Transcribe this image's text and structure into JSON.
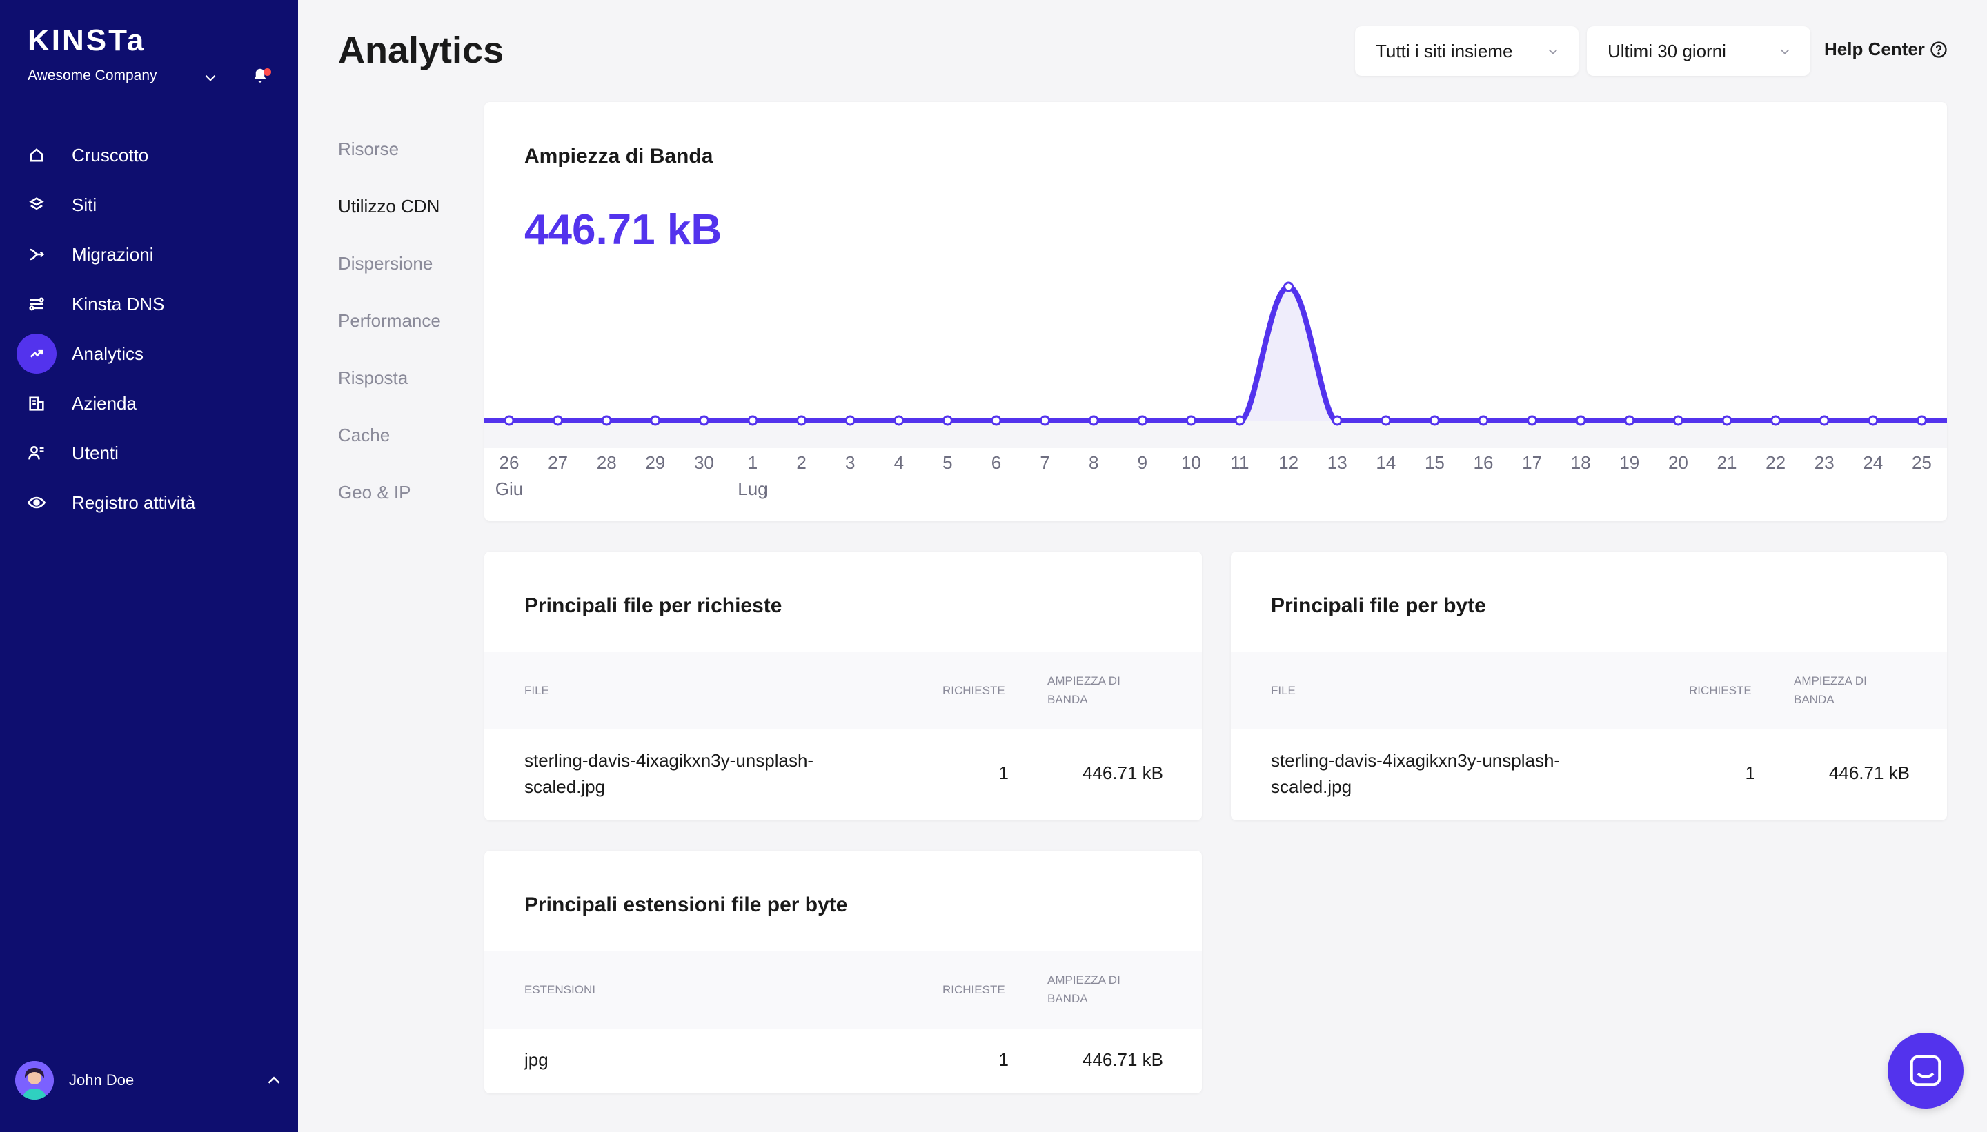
{
  "app": {
    "logo": "KINSTa",
    "company": "Awesome Company"
  },
  "sidebar": {
    "items": [
      {
        "label": "Cruscotto",
        "icon": "home-icon"
      },
      {
        "label": "Siti",
        "icon": "layers-icon"
      },
      {
        "label": "Migrazioni",
        "icon": "migration-icon"
      },
      {
        "label": "Kinsta DNS",
        "icon": "dns-icon"
      },
      {
        "label": "Analytics",
        "icon": "analytics-icon"
      },
      {
        "label": "Azienda",
        "icon": "building-icon"
      },
      {
        "label": "Utenti",
        "icon": "users-icon"
      },
      {
        "label": "Registro attività",
        "icon": "eye-icon"
      }
    ],
    "active_index": 4,
    "user": {
      "name": "John Doe"
    }
  },
  "header": {
    "title": "Analytics",
    "site_select": "Tutti i siti insieme",
    "range_select": "Ultimi 30 giorni",
    "help_center": "Help Center"
  },
  "subnav": {
    "items": [
      "Risorse",
      "Utilizzo CDN",
      "Dispersione",
      "Performance",
      "Risposta",
      "Cache",
      "Geo & IP"
    ],
    "active_index": 1
  },
  "bandwidth_card": {
    "title": "Ampiezza di Banda",
    "total": "446.71 kB"
  },
  "chart_data": {
    "type": "line",
    "title": "Ampiezza di Banda",
    "categories": [
      "26",
      "27",
      "28",
      "29",
      "30",
      "1",
      "2",
      "3",
      "4",
      "5",
      "6",
      "7",
      "8",
      "9",
      "10",
      "11",
      "12",
      "13",
      "14",
      "15",
      "16",
      "17",
      "18",
      "19",
      "20",
      "21",
      "22",
      "23",
      "24",
      "25"
    ],
    "month_labels": [
      {
        "index": 0,
        "label": "Giu"
      },
      {
        "index": 5,
        "label": "Lug"
      }
    ],
    "series": [
      {
        "name": "Ampiezza di Banda (kB)",
        "values": [
          0,
          0,
          0,
          0,
          0,
          0,
          0,
          0,
          0,
          0,
          0,
          0,
          0,
          0,
          0,
          0,
          446.71,
          0,
          0,
          0,
          0,
          0,
          0,
          0,
          0,
          0,
          0,
          0,
          0,
          0
        ]
      }
    ],
    "ylim": [
      0,
      446.71
    ],
    "grid": false,
    "color": "#5333ed"
  },
  "top_files_requests": {
    "title": "Principali file per richieste",
    "columns": [
      "File",
      "Richieste",
      "Ampiezza di banda"
    ],
    "rows": [
      {
        "file_line1": "sterling-davis-4ixagikxn3y-unsplash-",
        "file_line2": "scaled.jpg",
        "requests": "1",
        "bandwidth": "446.71 kB"
      }
    ]
  },
  "top_files_bytes": {
    "title": "Principali file per byte",
    "columns": [
      "File",
      "Richieste",
      "Ampiezza di banda"
    ],
    "rows": [
      {
        "file_line1": "sterling-davis-4ixagikxn3y-unsplash-",
        "file_line2": "scaled.jpg",
        "requests": "1",
        "bandwidth": "446.71 kB"
      }
    ]
  },
  "top_extensions": {
    "title": "Principali estensioni file per byte",
    "columns": [
      "Estensioni",
      "Richieste",
      "Ampiezza di banda"
    ],
    "rows": [
      {
        "extension": "jpg",
        "requests": "1",
        "bandwidth": "446.71 kB"
      }
    ]
  },
  "colors": {
    "sidebar_bg": "#0e0e6f",
    "accent": "#5333ed",
    "page_bg": "#f5f5f7"
  }
}
